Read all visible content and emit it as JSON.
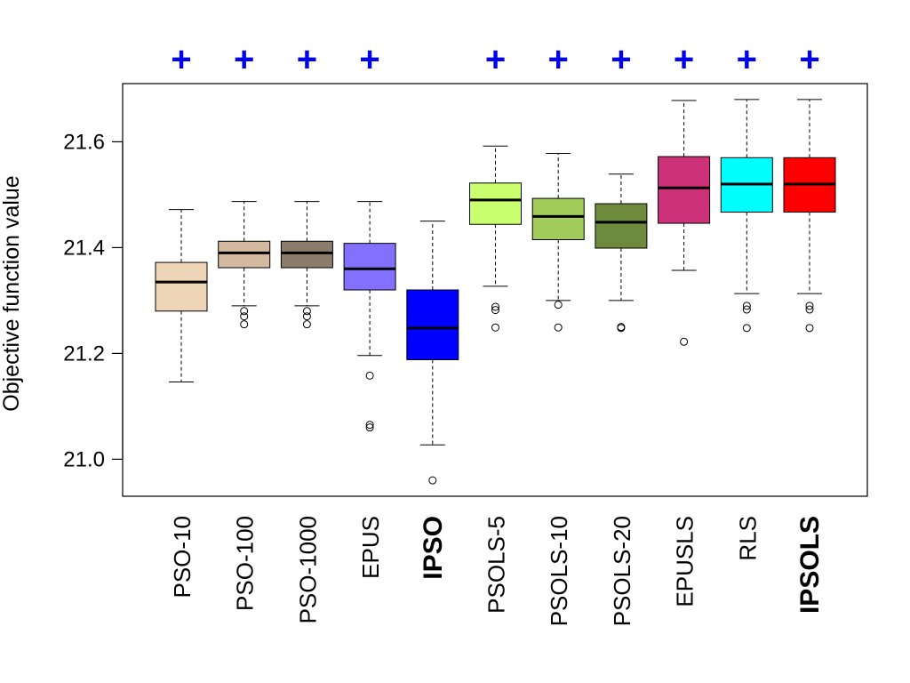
{
  "chart_data": {
    "type": "boxplot",
    "ylabel": "Objective function value",
    "yticks": [
      21.0,
      21.2,
      21.4,
      21.6
    ],
    "ylim": [
      20.93,
      21.71
    ],
    "grid": false,
    "significance_marker": "+",
    "categories": [
      "PSO-10",
      "PSO-100",
      "PSO-1000",
      "EPUS",
      "IPSO",
      "PSOLS-5",
      "PSOLS-10",
      "PSOLS-20",
      "EPUSLS",
      "RLS",
      "IPSOLS"
    ],
    "bold_categories": [
      "IPSO",
      "IPSOLS"
    ],
    "significant": [
      true,
      true,
      true,
      true,
      false,
      true,
      true,
      true,
      true,
      true,
      true
    ],
    "boxes": [
      {
        "name": "PSO-10",
        "color": "#eed5b7",
        "whisker_low": 21.146,
        "q1": 21.28,
        "median": 21.335,
        "q3": 21.372,
        "whisker_high": 21.472,
        "outliers": []
      },
      {
        "name": "PSO-100",
        "color": "#d2b9a0",
        "whisker_low": 21.29,
        "q1": 21.362,
        "median": 21.39,
        "q3": 21.412,
        "whisker_high": 21.487,
        "outliers": [
          21.28,
          21.27,
          21.255
        ]
      },
      {
        "name": "PSO-1000",
        "color": "#8b7d6b",
        "whisker_low": 21.29,
        "q1": 21.362,
        "median": 21.39,
        "q3": 21.412,
        "whisker_high": 21.487,
        "outliers": [
          21.28,
          21.27,
          21.255
        ]
      },
      {
        "name": "EPUS",
        "color": "#8470ff",
        "whisker_low": 21.196,
        "q1": 21.32,
        "median": 21.36,
        "q3": 21.408,
        "whisker_high": 21.487,
        "outliers": [
          21.158,
          21.065,
          21.06
        ]
      },
      {
        "name": "IPSO",
        "color": "#0000ff",
        "whisker_low": 21.027,
        "q1": 21.188,
        "median": 21.248,
        "q3": 21.32,
        "whisker_high": 21.45,
        "outliers": [
          20.96
        ]
      },
      {
        "name": "PSOLS-5",
        "color": "#caff70",
        "whisker_low": 21.327,
        "q1": 21.444,
        "median": 21.49,
        "q3": 21.522,
        "whisker_high": 21.592,
        "outliers": [
          21.288,
          21.282,
          21.249
        ]
      },
      {
        "name": "PSOLS-10",
        "color": "#a2cd5a",
        "whisker_low": 21.3,
        "q1": 21.415,
        "median": 21.459,
        "q3": 21.493,
        "whisker_high": 21.578,
        "outliers": [
          21.292,
          21.249
        ]
      },
      {
        "name": "PSOLS-20",
        "color": "#6e8b3d",
        "whisker_low": 21.3,
        "q1": 21.399,
        "median": 21.448,
        "q3": 21.483,
        "whisker_high": 21.539,
        "outliers": [
          21.25,
          21.248
        ]
      },
      {
        "name": "EPUSLS",
        "color": "#cd3278",
        "whisker_low": 21.357,
        "q1": 21.446,
        "median": 21.513,
        "q3": 21.572,
        "whisker_high": 21.678,
        "outliers": [
          21.222
        ]
      },
      {
        "name": "RLS",
        "color": "#00ffff",
        "whisker_low": 21.313,
        "q1": 21.467,
        "median": 21.52,
        "q3": 21.57,
        "whisker_high": 21.68,
        "outliers": [
          21.29,
          21.283,
          21.248
        ]
      },
      {
        "name": "IPSOLS",
        "color": "#ff0000",
        "whisker_low": 21.313,
        "q1": 21.467,
        "median": 21.52,
        "q3": 21.57,
        "whisker_high": 21.68,
        "outliers": [
          21.29,
          21.283,
          21.248
        ]
      }
    ]
  }
}
